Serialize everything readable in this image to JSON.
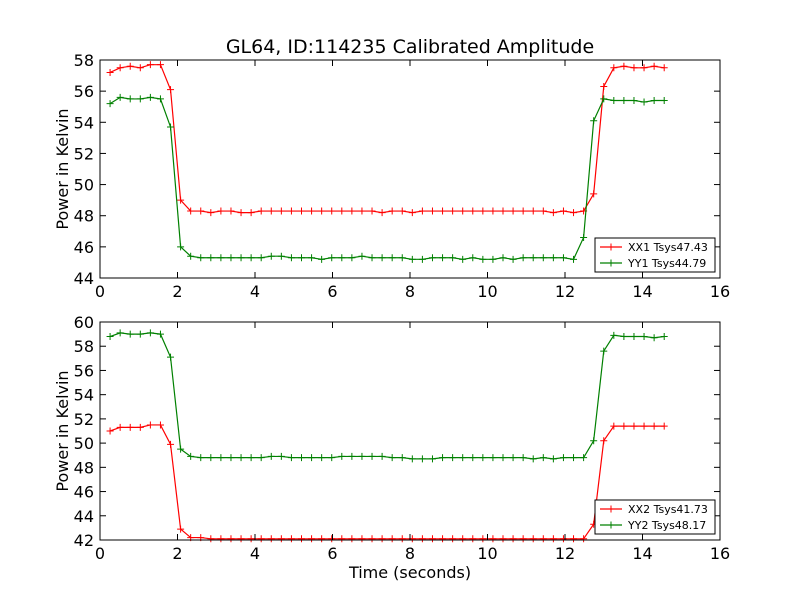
{
  "figure": {
    "title": "GL64, ID:114235 Calibrated Amplitude"
  },
  "chart_data": [
    {
      "type": "line",
      "title": "GL64, ID:114235 Calibrated Amplitude",
      "xlabel": "",
      "ylabel": "Power in Kelvin",
      "xlim": [
        0,
        16
      ],
      "ylim": [
        44,
        58
      ],
      "xticks": [
        "0",
        "2",
        "4",
        "6",
        "8",
        "10",
        "12",
        "14",
        "16"
      ],
      "yticks": [
        "44",
        "46",
        "48",
        "50",
        "52",
        "54",
        "56",
        "58"
      ],
      "grid": false,
      "legend": "lower-right",
      "x": [
        0.26,
        0.52,
        0.78,
        1.04,
        1.3,
        1.56,
        1.82,
        2.08,
        2.34,
        2.6,
        2.86,
        3.12,
        3.38,
        3.64,
        3.9,
        4.16,
        4.42,
        4.68,
        4.94,
        5.2,
        5.46,
        5.72,
        5.98,
        6.24,
        6.5,
        6.76,
        7.02,
        7.28,
        7.54,
        7.8,
        8.06,
        8.32,
        8.58,
        8.84,
        9.1,
        9.36,
        9.62,
        9.88,
        10.14,
        10.4,
        10.66,
        10.92,
        11.18,
        11.44,
        11.7,
        11.96,
        12.22,
        12.48,
        12.74,
        13.0,
        13.26,
        13.52,
        13.78,
        14.04,
        14.3,
        14.56
      ],
      "series": [
        {
          "name": "XX1 Tsys47.43",
          "color": "#ff0000",
          "values": [
            57.2,
            57.5,
            57.6,
            57.5,
            57.7,
            57.7,
            56.1,
            49.0,
            48.3,
            48.3,
            48.2,
            48.3,
            48.3,
            48.2,
            48.2,
            48.3,
            48.3,
            48.3,
            48.3,
            48.3,
            48.3,
            48.3,
            48.3,
            48.3,
            48.3,
            48.3,
            48.3,
            48.2,
            48.3,
            48.3,
            48.2,
            48.3,
            48.3,
            48.3,
            48.3,
            48.3,
            48.3,
            48.3,
            48.3,
            48.3,
            48.3,
            48.3,
            48.3,
            48.3,
            48.2,
            48.3,
            48.2,
            48.3,
            49.4,
            56.3,
            57.5,
            57.6,
            57.5,
            57.5,
            57.6,
            57.5
          ]
        },
        {
          "name": "YY1 Tsys44.79",
          "color": "#008000",
          "values": [
            55.2,
            55.6,
            55.5,
            55.5,
            55.6,
            55.5,
            53.7,
            46.0,
            45.4,
            45.3,
            45.3,
            45.3,
            45.3,
            45.3,
            45.3,
            45.3,
            45.4,
            45.4,
            45.3,
            45.3,
            45.3,
            45.2,
            45.3,
            45.3,
            45.3,
            45.4,
            45.3,
            45.3,
            45.3,
            45.3,
            45.2,
            45.2,
            45.3,
            45.3,
            45.3,
            45.2,
            45.3,
            45.2,
            45.2,
            45.3,
            45.2,
            45.3,
            45.3,
            45.3,
            45.3,
            45.3,
            45.2,
            46.6,
            54.1,
            55.5,
            55.4,
            55.4,
            55.4,
            55.3,
            55.4,
            55.4
          ]
        }
      ]
    },
    {
      "type": "line",
      "title": "",
      "xlabel": "Time (seconds)",
      "ylabel": "Power in Kelvin",
      "xlim": [
        0,
        16
      ],
      "ylim": [
        42,
        60
      ],
      "xticks": [
        "0",
        "2",
        "4",
        "6",
        "8",
        "10",
        "12",
        "14",
        "16"
      ],
      "yticks": [
        "42",
        "44",
        "46",
        "48",
        "50",
        "52",
        "54",
        "56",
        "58",
        "60"
      ],
      "grid": false,
      "legend": "lower-right",
      "x": [
        0.26,
        0.52,
        0.78,
        1.04,
        1.3,
        1.56,
        1.82,
        2.08,
        2.34,
        2.6,
        2.86,
        3.12,
        3.38,
        3.64,
        3.9,
        4.16,
        4.42,
        4.68,
        4.94,
        5.2,
        5.46,
        5.72,
        5.98,
        6.24,
        6.5,
        6.76,
        7.02,
        7.28,
        7.54,
        7.8,
        8.06,
        8.32,
        8.58,
        8.84,
        9.1,
        9.36,
        9.62,
        9.88,
        10.14,
        10.4,
        10.66,
        10.92,
        11.18,
        11.44,
        11.7,
        11.96,
        12.22,
        12.48,
        12.74,
        13.0,
        13.26,
        13.52,
        13.78,
        14.04,
        14.3,
        14.56
      ],
      "series": [
        {
          "name": "XX2 Tsys41.73",
          "color": "#ff0000",
          "values": [
            51.0,
            51.3,
            51.3,
            51.3,
            51.5,
            51.5,
            49.9,
            42.9,
            42.2,
            42.2,
            42.1,
            42.1,
            42.1,
            42.1,
            42.1,
            42.1,
            42.1,
            42.1,
            42.1,
            42.1,
            42.1,
            42.1,
            42.1,
            42.1,
            42.1,
            42.1,
            42.1,
            42.1,
            42.1,
            42.1,
            42.1,
            42.1,
            42.1,
            42.1,
            42.1,
            42.1,
            42.1,
            42.1,
            42.1,
            42.1,
            42.1,
            42.1,
            42.1,
            42.1,
            42.1,
            42.1,
            42.1,
            42.1,
            43.3,
            50.2,
            51.4,
            51.4,
            51.4,
            51.4,
            51.4,
            51.4
          ]
        },
        {
          "name": "YY2 Tsys48.17",
          "color": "#008000",
          "values": [
            58.8,
            59.1,
            59.0,
            59.0,
            59.1,
            59.0,
            57.1,
            49.5,
            48.9,
            48.8,
            48.8,
            48.8,
            48.8,
            48.8,
            48.8,
            48.8,
            48.9,
            48.9,
            48.8,
            48.8,
            48.8,
            48.8,
            48.8,
            48.9,
            48.9,
            48.9,
            48.9,
            48.9,
            48.8,
            48.8,
            48.7,
            48.7,
            48.7,
            48.8,
            48.8,
            48.8,
            48.8,
            48.8,
            48.8,
            48.8,
            48.8,
            48.8,
            48.7,
            48.8,
            48.7,
            48.8,
            48.8,
            48.8,
            50.2,
            57.6,
            58.9,
            58.8,
            58.8,
            58.8,
            58.7,
            58.8
          ]
        }
      ]
    }
  ]
}
